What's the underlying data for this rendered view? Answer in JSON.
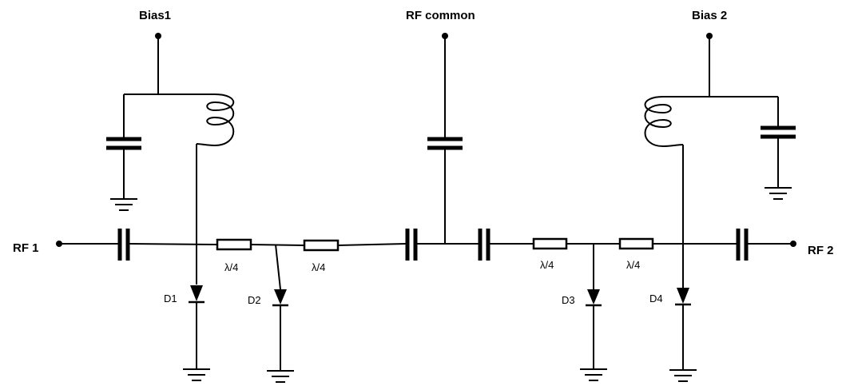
{
  "terminals": {
    "bias1": "Bias1",
    "rf_common": "RF common",
    "bias2": "Bias 2",
    "rf1": "RF 1",
    "rf2": "RF 2"
  },
  "transmission_lines": {
    "tl1": "λ/4",
    "tl2": "λ/4",
    "tl3": "λ/4",
    "tl4": "λ/4"
  },
  "diodes": {
    "d1": "D1",
    "d2": "D2",
    "d3": "D3",
    "d4": "D4"
  }
}
